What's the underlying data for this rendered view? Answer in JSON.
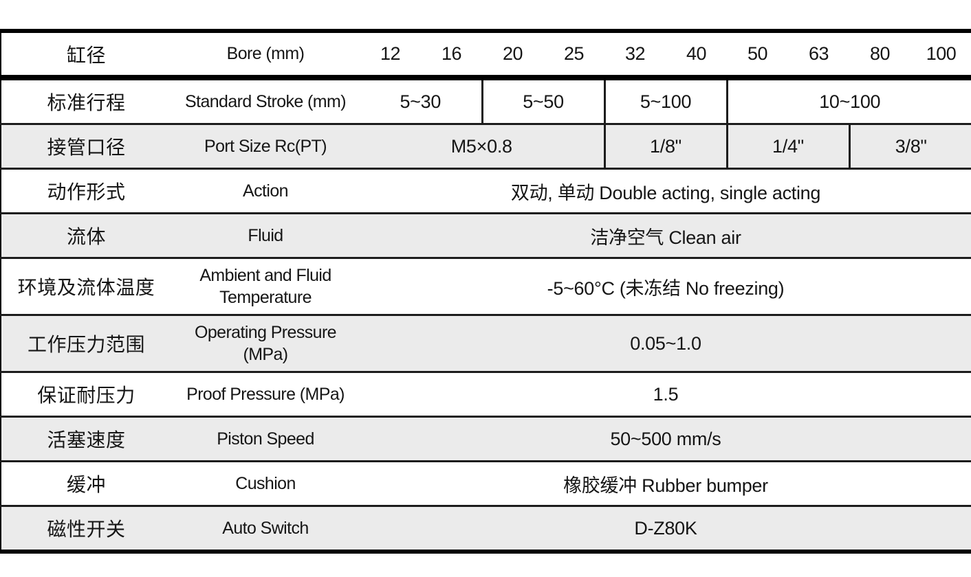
{
  "colors": {
    "stripe": "#ebebeb",
    "border": "#000000",
    "text": "#161616"
  },
  "header": {
    "cn": "缸径",
    "en": "Bore (mm)",
    "values": [
      "12",
      "16",
      "20",
      "25",
      "32",
      "40",
      "50",
      "63",
      "80",
      "100"
    ]
  },
  "stroke": {
    "cn": "标准行程",
    "en": "Standard Stroke (mm)",
    "cells": [
      "5~30",
      "5~50",
      "5~100",
      "10~100"
    ]
  },
  "port": {
    "cn": "接管口径",
    "en": "Port Size Rc(PT)",
    "cells": [
      "M5×0.8",
      "1/8\"",
      "1/4\"",
      "3/8\""
    ]
  },
  "action": {
    "cn": "动作形式",
    "en": "Action",
    "value": "双动, 单动 Double acting, single acting"
  },
  "fluid": {
    "cn": "流体",
    "en": "Fluid",
    "value": "洁净空气 Clean air"
  },
  "temperature": {
    "cn": "环境及流体温度",
    "en": "Ambient and Fluid Temperature",
    "value": "-5~60°C (未冻结 No freezing)"
  },
  "pressure": {
    "cn": "工作压力范围",
    "en": "Operating Pressure (MPa)",
    "value": "0.05~1.0"
  },
  "proof": {
    "cn": "保证耐压力",
    "en": "Proof Pressure (MPa)",
    "value": "1.5"
  },
  "speed": {
    "cn": "活塞速度",
    "en": "Piston Speed",
    "value": "50~500 mm/s"
  },
  "cushion": {
    "cn": "缓冲",
    "en": "Cushion",
    "value": "橡胶缓冲 Rubber bumper"
  },
  "autoswitch": {
    "cn": "磁性开关",
    "en": "Auto Switch",
    "value": "D-Z80K"
  }
}
